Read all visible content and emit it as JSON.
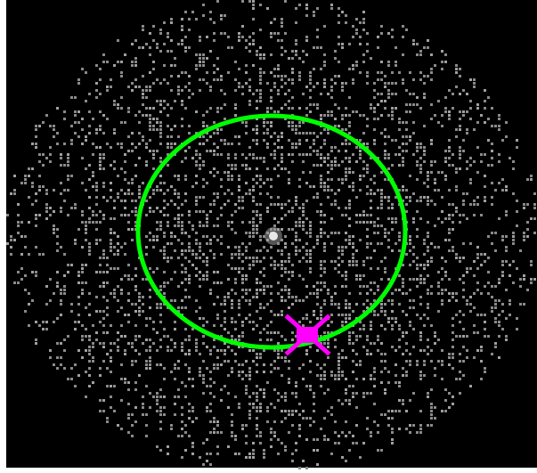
{
  "image": {
    "background_color": "#000000",
    "border_color": "#ffffff",
    "noise_color": "#8a8a8a",
    "noise_color_alt": "#a0a0a0"
  },
  "source": {
    "name": "bright-point-source",
    "core_color": "#e6e6e6",
    "halo_color": "#9a9a9a"
  },
  "region_circle": {
    "shape": "ellipse",
    "color": "#00ff00"
  },
  "marker": {
    "shape": "x-cross",
    "color": "#ff00ff"
  }
}
